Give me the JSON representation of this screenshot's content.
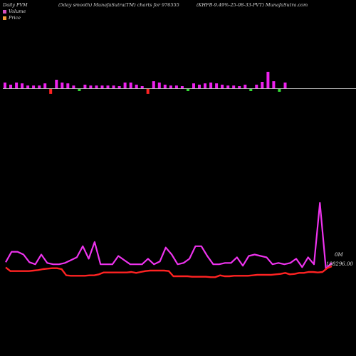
{
  "header": {
    "left": "Daily PVM",
    "middle": "(5day smooth) MunafaSutra(TM) charts for 976555",
    "right": "(KHFB-9.49%-25-08-33-PVT) MunafaSutra.com"
  },
  "legend": [
    {
      "label": "Volume",
      "color": "#d94fc0"
    },
    {
      "label": "Price",
      "color": "#f29c38"
    }
  ],
  "colors": {
    "up": "#ee22ee",
    "down_red": "#ff2222",
    "down_green": "#33dd33",
    "baseline": "#c0c0c0",
    "volume_line": "#ee33ee",
    "price_line": "#ff2222"
  },
  "chart_data": {
    "type": "bar",
    "volume_bars": [
      {
        "v": 0.27,
        "c": "up"
      },
      {
        "v": 0.17,
        "c": "up"
      },
      {
        "v": 0.27,
        "c": "up"
      },
      {
        "v": 0.23,
        "c": "up"
      },
      {
        "v": 0.13,
        "c": "up"
      },
      {
        "v": 0.13,
        "c": "up"
      },
      {
        "v": 0.13,
        "c": "up"
      },
      {
        "v": 0.23,
        "c": "up"
      },
      {
        "v": -0.23,
        "c": "down_red"
      },
      {
        "v": 0.4,
        "c": "up"
      },
      {
        "v": 0.27,
        "c": "up"
      },
      {
        "v": 0.23,
        "c": "up"
      },
      {
        "v": 0.13,
        "c": "up"
      },
      {
        "v": -0.1,
        "c": "down_green"
      },
      {
        "v": 0.17,
        "c": "up"
      },
      {
        "v": 0.13,
        "c": "up"
      },
      {
        "v": 0.13,
        "c": "up"
      },
      {
        "v": 0.13,
        "c": "up"
      },
      {
        "v": 0.13,
        "c": "up"
      },
      {
        "v": 0.13,
        "c": "up"
      },
      {
        "v": 0.1,
        "c": "up"
      },
      {
        "v": 0.27,
        "c": "up"
      },
      {
        "v": 0.27,
        "c": "up"
      },
      {
        "v": 0.17,
        "c": "up"
      },
      {
        "v": 0.1,
        "c": "up"
      },
      {
        "v": -0.23,
        "c": "down_red"
      },
      {
        "v": 0.33,
        "c": "up"
      },
      {
        "v": 0.27,
        "c": "up"
      },
      {
        "v": 0.17,
        "c": "up"
      },
      {
        "v": 0.13,
        "c": "up"
      },
      {
        "v": 0.13,
        "c": "up"
      },
      {
        "v": 0.1,
        "c": "up"
      },
      {
        "v": -0.1,
        "c": "down_green"
      },
      {
        "v": 0.23,
        "c": "up"
      },
      {
        "v": 0.17,
        "c": "up"
      },
      {
        "v": 0.23,
        "c": "up"
      },
      {
        "v": 0.27,
        "c": "up"
      },
      {
        "v": 0.23,
        "c": "up"
      },
      {
        "v": 0.17,
        "c": "up"
      },
      {
        "v": 0.13,
        "c": "up"
      },
      {
        "v": 0.13,
        "c": "up"
      },
      {
        "v": 0.1,
        "c": "up"
      },
      {
        "v": 0.17,
        "c": "up"
      },
      {
        "v": -0.1,
        "c": "down_green"
      },
      {
        "v": 0.17,
        "c": "up"
      },
      {
        "v": 0.3,
        "c": "up"
      },
      {
        "v": 0.77,
        "c": "up"
      },
      {
        "v": 0.33,
        "c": "up"
      },
      {
        "v": -0.13,
        "c": "down_green"
      },
      {
        "v": 0.27,
        "c": "up"
      }
    ],
    "volume_line": [
      15,
      30,
      30,
      26,
      15,
      12,
      26,
      14,
      12,
      12,
      14,
      18,
      22,
      38,
      20,
      44,
      12,
      12,
      12,
      24,
      18,
      12,
      12,
      12,
      20,
      12,
      16,
      36,
      26,
      12,
      14,
      20,
      38,
      38,
      24,
      12,
      12,
      14,
      14,
      22,
      10,
      24,
      26,
      24,
      22,
      12,
      14,
      12,
      14,
      20,
      8,
      22,
      12,
      100,
      6,
      14
    ],
    "price_line": [
      14.4,
      9.3,
      9.3,
      9.3,
      9.3,
      9.3,
      10.0,
      10.7,
      12.0,
      12.7,
      13.3,
      13.3,
      12.0,
      3.3,
      2.7,
      2.7,
      2.7,
      2.7,
      3.3,
      3.3,
      4.7,
      7.3,
      7.3,
      7.3,
      7.3,
      7.3,
      7.3,
      8.0,
      6.7,
      8.0,
      9.3,
      10.0,
      10.0,
      10.0,
      10.0,
      9.3,
      2.0,
      2.0,
      2.0,
      2.0,
      1.3,
      1.3,
      1.3,
      1.3,
      0.7,
      0.7,
      3.3,
      2.0,
      2.0,
      2.7,
      2.7,
      2.7,
      2.7,
      3.3,
      4.0,
      4.0,
      4.0,
      4.0,
      4.7,
      5.3,
      6.7,
      4.7,
      5.3,
      6.7,
      6.7,
      8.0,
      8.0,
      7.3,
      8.0,
      13.3,
      16.0
    ],
    "volume_label": "0M",
    "price_label": "108296.00"
  }
}
